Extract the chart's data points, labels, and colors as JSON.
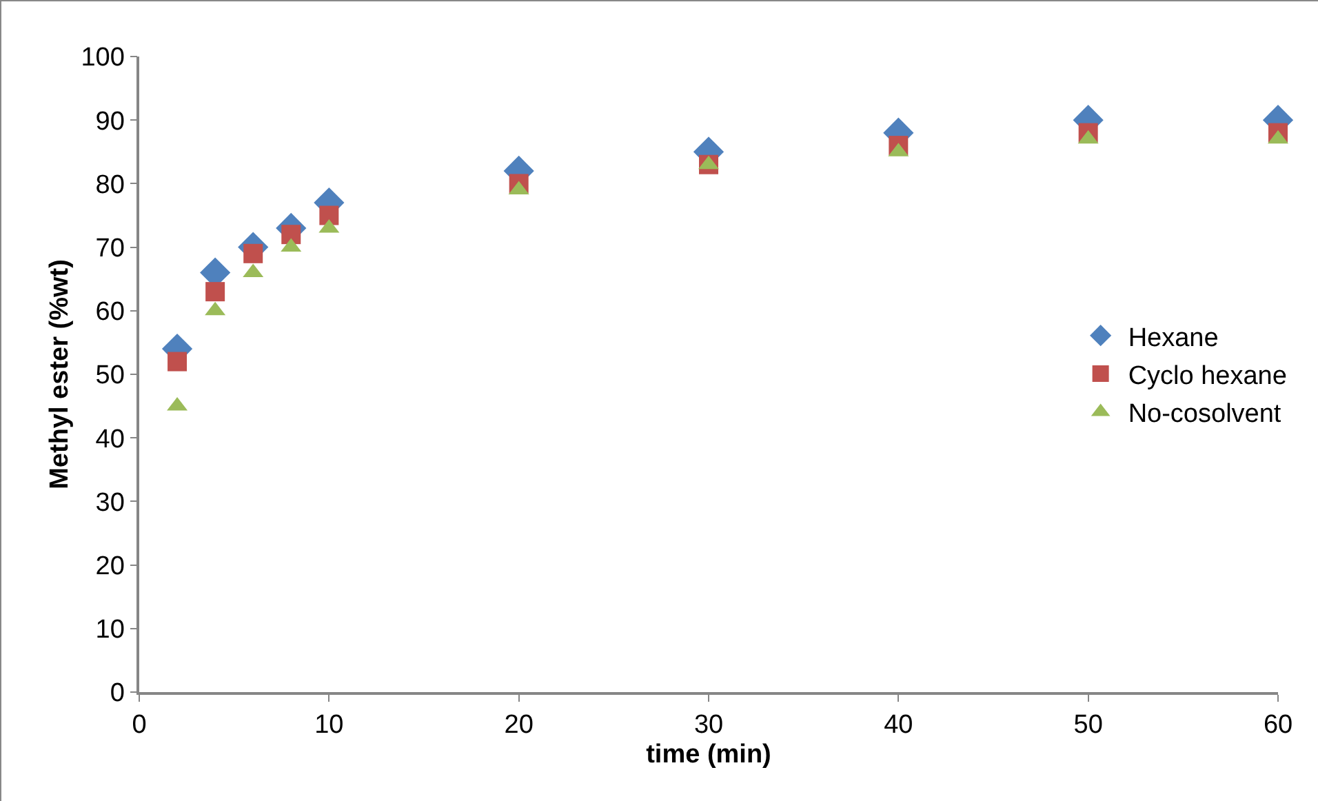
{
  "chart_data": {
    "type": "scatter",
    "xlabel": "time (min)",
    "ylabel": "Methyl ester (%wt)",
    "xlim": [
      0,
      60
    ],
    "xticks": [
      0,
      10,
      20,
      30,
      40,
      50,
      60
    ],
    "ylim": [
      0,
      100
    ],
    "yticks": [
      0,
      10,
      20,
      30,
      40,
      50,
      60,
      70,
      80,
      90,
      100
    ],
    "grid": false,
    "legend": "right",
    "x": [
      2,
      4,
      6,
      8,
      10,
      20,
      30,
      40,
      50,
      60
    ],
    "series": [
      {
        "name": "Hexane",
        "color": "#4f81bd",
        "marker": "diamond",
        "values": [
          54,
          66,
          70,
          73,
          77,
          82,
          85,
          88,
          90,
          90
        ]
      },
      {
        "name": "Cyclo hexane",
        "color": "#c0504d",
        "marker": "square",
        "values": [
          52,
          63,
          69,
          72,
          75,
          80,
          83,
          86,
          88,
          88
        ]
      },
      {
        "name": "No-cosolvent",
        "color": "#9bbb59",
        "marker": "triangle",
        "values": [
          45,
          60,
          66,
          70,
          73,
          79,
          83,
          85,
          87,
          87
        ]
      }
    ]
  }
}
